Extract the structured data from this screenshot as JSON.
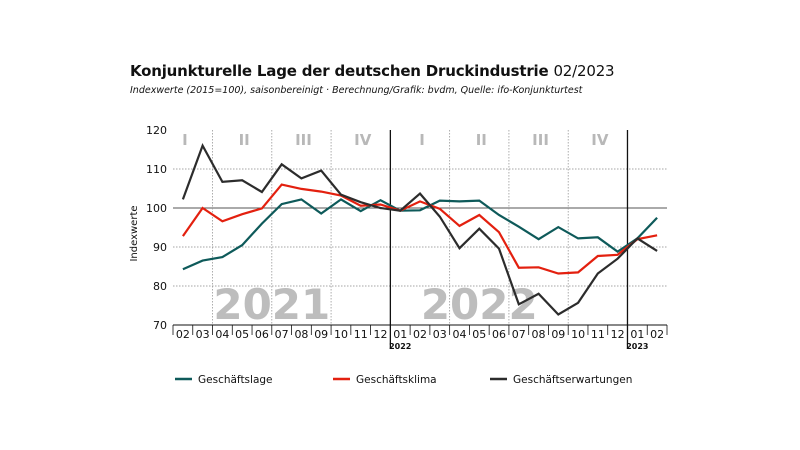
{
  "header": {
    "title_main": "Konjunkturelle Lage der deutschen Druckindustrie",
    "title_date": "02/2023",
    "subtitle": "Indexwerte (2015=100), saisonbereinigt · Berechnung/Grafik: bvdm, Quelle: ifo-Konjunkturtest"
  },
  "chart_data": {
    "type": "line",
    "title": "Konjunkturelle Lage der deutschen Druckindustrie 02/2023",
    "subtitle": "Indexwerte (2015=100), saisonbereinigt · Berechnung/Grafik: bvdm, Quelle: ifo-Konjunkturtest",
    "ylabel": "Indexwerte",
    "xlabel": "",
    "ylim": [
      70,
      120
    ],
    "yticks": [
      70,
      80,
      90,
      100,
      110,
      120
    ],
    "categories": [
      "02",
      "03",
      "04",
      "05",
      "06",
      "07",
      "08",
      "09",
      "10",
      "11",
      "12",
      "01",
      "02",
      "03",
      "04",
      "05",
      "06",
      "07",
      "08",
      "09",
      "10",
      "11",
      "12",
      "01",
      "02"
    ],
    "year_labels": [
      {
        "index": 11,
        "label": "2022"
      },
      {
        "index": 23,
        "label": "2023"
      }
    ],
    "background_years": [
      {
        "label": "2021",
        "center_index": 4.5
      },
      {
        "label": "2022",
        "center_index": 15
      }
    ],
    "quarters": [
      {
        "label": "I",
        "center_index": 0
      },
      {
        "label": "II",
        "center_index": 3
      },
      {
        "label": "III",
        "center_index": 6
      },
      {
        "label": "IV",
        "center_index": 9
      },
      {
        "label": "I",
        "center_index": 12
      },
      {
        "label": "II",
        "center_index": 15
      },
      {
        "label": "III",
        "center_index": 18
      },
      {
        "label": "IV",
        "center_index": 21
      }
    ],
    "grid": true,
    "legend_position": "bottom",
    "series": [
      {
        "name": "Geschäftslage",
        "color": "#0e5a5a",
        "values": [
          84.3,
          86.5,
          87.4,
          90.5,
          96.0,
          101.0,
          102.2,
          98.6,
          102.2,
          99.2,
          102.0,
          99.3,
          99.4,
          101.9,
          101.7,
          101.9,
          98.2,
          95.2,
          92.0,
          95.1,
          92.2,
          92.5,
          88.8,
          92.2,
          97.5
        ]
      },
      {
        "name": "Geschäftsklima",
        "color": "#e3200f",
        "values": [
          92.8,
          100.0,
          96.6,
          98.4,
          99.9,
          106.0,
          104.9,
          104.2,
          103.2,
          100.6,
          100.9,
          99.3,
          101.7,
          99.8,
          95.4,
          98.2,
          93.8,
          84.7,
          84.8,
          83.2,
          83.5,
          87.7,
          88.0,
          92.0,
          93.0
        ]
      },
      {
        "name": "Geschäftserwartungen",
        "color": "#2c2c2c",
        "values": [
          102.2,
          116.0,
          106.7,
          107.1,
          104.1,
          111.2,
          107.6,
          109.6,
          103.4,
          101.5,
          100.0,
          99.3,
          103.7,
          97.8,
          89.7,
          94.7,
          89.6,
          75.3,
          78.0,
          72.7,
          75.7,
          83.2,
          87.0,
          92.2,
          89.0
        ]
      }
    ]
  },
  "legend": [
    {
      "label": "Geschäftslage",
      "color": "#0e5a5a"
    },
    {
      "label": "Geschäftsklima",
      "color": "#e3200f"
    },
    {
      "label": "Geschäftserwartungen",
      "color": "#2c2c2c"
    }
  ]
}
